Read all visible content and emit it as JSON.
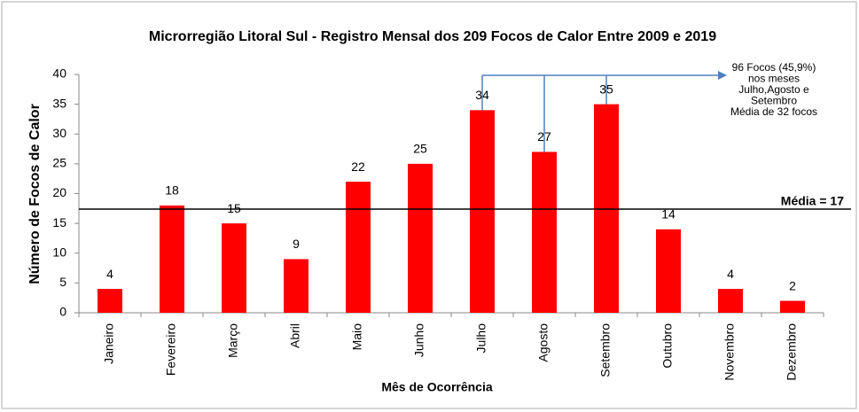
{
  "chart_data": {
    "type": "bar",
    "title": "Microrregião Litoral Sul  - Registro Mensal dos 209 Focos de Calor Entre 2009 e 2019",
    "x_label": "Mês de Ocorrência",
    "y_label": "Número de Focos de Calor",
    "categories": [
      "Janeiro",
      "Fevereiro",
      "Março",
      "Abril",
      "Maio",
      "Junho",
      "Julho",
      "Agosto",
      "Setembro",
      "Outubro",
      "Novembro",
      "Dezembro"
    ],
    "values": [
      4,
      18,
      15,
      9,
      22,
      25,
      34,
      27,
      35,
      14,
      4,
      2
    ],
    "color": "#ff0000",
    "ylim": [
      0,
      40
    ],
    "yticks": [
      0,
      5,
      10,
      15,
      20,
      25,
      30,
      35,
      40
    ],
    "grid": false,
    "mean": {
      "value": 17.4,
      "label": "Média = 17"
    },
    "annotation": [
      "96 Focos (45,9%)",
      "nos meses",
      "Julho,Agosto e",
      "Setembro",
      "Média de 32 focos"
    ]
  }
}
